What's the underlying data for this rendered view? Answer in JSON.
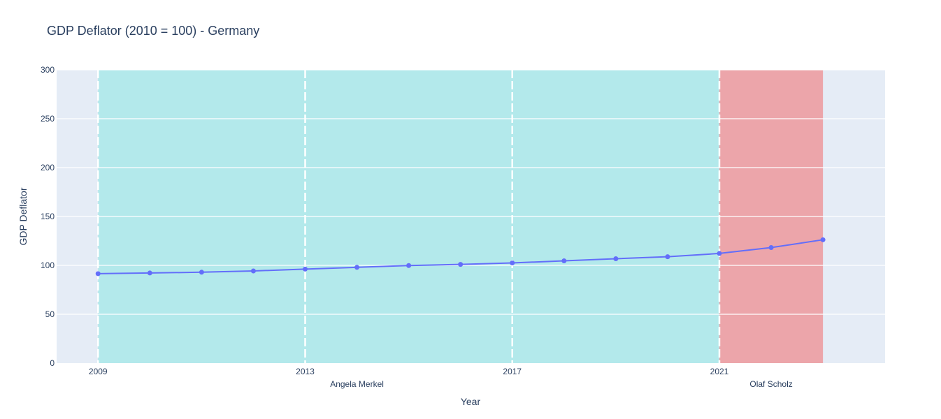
{
  "chart_data": {
    "type": "line",
    "title": "GDP Deflator (2010 = 100) - Germany",
    "xlabel": "Year",
    "ylabel": "GDP Deflator",
    "xlim": [
      2008.2,
      2024.2
    ],
    "ylim": [
      0,
      300
    ],
    "yticks": [
      0,
      50,
      100,
      150,
      200,
      250,
      300
    ],
    "xticks": [
      2009,
      2013,
      2017,
      2021
    ],
    "grid": true,
    "line_color": "#636efa",
    "series": [
      {
        "x": [
          2009,
          2010,
          2011,
          2012,
          2013,
          2014,
          2015,
          2016,
          2017,
          2018,
          2019,
          2020,
          2021,
          2022,
          2023
        ],
        "values": [
          91.5,
          92.2,
          93.0,
          94.3,
          96.2,
          98.0,
          99.8,
          101.0,
          102.5,
          104.6,
          106.8,
          108.8,
          112.2,
          118.2,
          126.2
        ]
      }
    ],
    "regions": [
      {
        "start": 2009,
        "end": 2021,
        "label": "Angela Merkel",
        "label_x": 2014,
        "color": "#b3e9eb"
      },
      {
        "start": 2021,
        "end": 2023,
        "label": "Olaf Scholz",
        "label_x": 2022,
        "color": "#eca5aa"
      }
    ],
    "dashed_lines": [
      2009,
      2013,
      2017,
      2021
    ]
  }
}
